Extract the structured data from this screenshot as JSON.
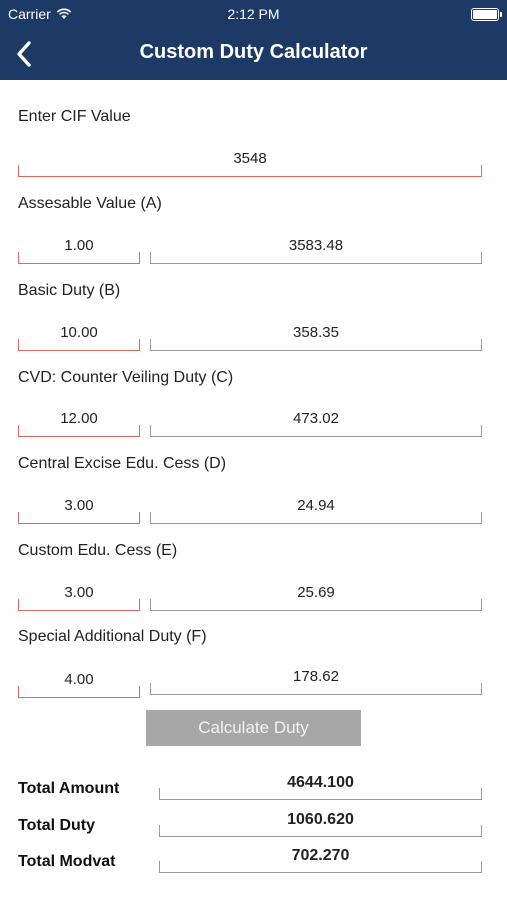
{
  "status": {
    "carrier": "Carrier",
    "time": "2:12 PM"
  },
  "nav": {
    "title": "Custom Duty Calculator"
  },
  "cif": {
    "label": "Enter CIF Value",
    "value": "3548"
  },
  "rows": [
    {
      "label": "Assesable Value  (A)",
      "rate": "1.00",
      "amount": "3583.48"
    },
    {
      "label": "Basic Duty  (B)",
      "rate": "10.00",
      "amount": "358.35"
    },
    {
      "label": "CVD: Counter Veiling Duty (C)",
      "rate": "12.00",
      "amount": "473.02"
    },
    {
      "label": "Central Excise Edu. Cess  (D)",
      "rate": "3.00",
      "amount": "24.94"
    },
    {
      "label": "Custom Edu. Cess  (E)",
      "rate": "3.00",
      "amount": "25.69"
    },
    {
      "label": "Special Additional Duty  (F)",
      "rate": "4.00",
      "amount": "178.62"
    }
  ],
  "button": {
    "label": "Calculate Duty"
  },
  "totals": [
    {
      "label": "Total Amount",
      "value": "4644.100"
    },
    {
      "label": "Total Duty",
      "value": "1060.620"
    },
    {
      "label": "Total Modvat",
      "value": "702.270"
    }
  ],
  "colors": {
    "navbar": "#1d3a66",
    "input_underline": "#d96b63",
    "readonly_underline": "#9a9a9a",
    "button": "#a7a7a7"
  }
}
